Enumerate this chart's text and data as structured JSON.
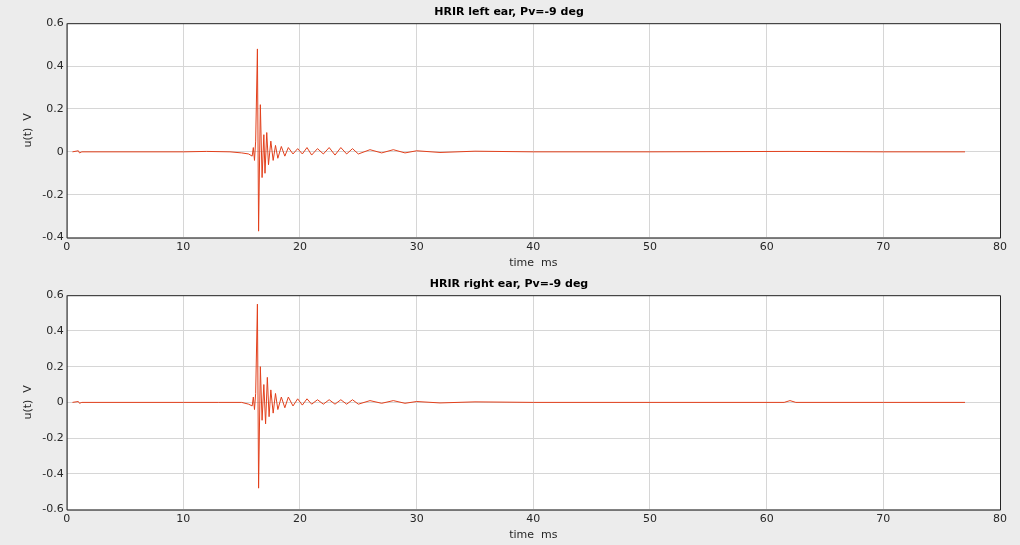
{
  "chart_data": [
    {
      "type": "line",
      "title": "HRIR left ear, Pv=-9 deg",
      "xlabel": "time  ms",
      "ylabel": "u(t)  V",
      "xlim": [
        0,
        80
      ],
      "xticks": [
        0,
        10,
        20,
        30,
        40,
        50,
        60,
        70,
        80
      ],
      "ylim": [
        -0.4,
        0.6
      ],
      "yticks": [
        -0.4,
        -0.2,
        0,
        0.2,
        0.4,
        0.6
      ],
      "grid": true,
      "legend": false,
      "x": [
        0.5,
        1.0,
        1.1,
        1.3,
        10,
        12,
        14,
        15,
        15.6,
        15.9,
        16.0,
        16.1,
        16.2,
        16.35,
        16.45,
        16.6,
        16.75,
        16.9,
        17.0,
        17.15,
        17.3,
        17.5,
        17.7,
        17.9,
        18.1,
        18.4,
        18.7,
        19.0,
        19.4,
        19.8,
        20.2,
        20.6,
        21.0,
        21.5,
        22.0,
        22.5,
        23.0,
        23.5,
        24.0,
        24.5,
        25.0,
        26,
        27,
        28,
        29,
        30,
        32,
        35,
        40,
        50,
        62,
        70,
        77
      ],
      "series": [
        {
          "color": "#e2401c",
          "values": [
            0,
            0.005,
            -0.005,
            0,
            0,
            0.002,
            0,
            -0.005,
            -0.01,
            -0.02,
            0.02,
            -0.04,
            0.05,
            0.48,
            -0.37,
            0.22,
            -0.12,
            0.08,
            -0.1,
            0.09,
            -0.06,
            0.05,
            -0.04,
            0.03,
            -0.03,
            0.025,
            -0.02,
            0.02,
            -0.01,
            0.015,
            -0.01,
            0.02,
            -0.015,
            0.015,
            -0.01,
            0.02,
            -0.015,
            0.02,
            -0.01,
            0.015,
            -0.01,
            0.01,
            -0.005,
            0.01,
            -0.005,
            0.005,
            -0.003,
            0.003,
            0,
            0,
            0.002,
            0,
            0
          ]
        }
      ]
    },
    {
      "type": "line",
      "title": "HRIR right ear, Pv=-9 deg",
      "xlabel": "time  ms",
      "ylabel": "u(t)  V",
      "xlim": [
        0,
        80
      ],
      "xticks": [
        0,
        10,
        20,
        30,
        40,
        50,
        60,
        70,
        80
      ],
      "ylim": [
        -0.6,
        0.6
      ],
      "yticks": [
        -0.6,
        -0.4,
        -0.2,
        0,
        0.2,
        0.4,
        0.6
      ],
      "grid": true,
      "legend": false,
      "x": [
        0.5,
        1.0,
        1.1,
        1.3,
        10,
        13,
        15,
        15.6,
        15.9,
        16.0,
        16.1,
        16.2,
        16.35,
        16.45,
        16.6,
        16.75,
        16.9,
        17.05,
        17.2,
        17.35,
        17.5,
        17.7,
        17.9,
        18.1,
        18.4,
        18.7,
        19.0,
        19.4,
        19.8,
        20.2,
        20.6,
        21.0,
        21.5,
        22.0,
        22.5,
        23.0,
        23.5,
        24.0,
        24.5,
        25.0,
        26,
        27,
        28,
        29,
        30,
        32,
        35,
        40,
        50,
        61.5,
        62,
        62.5,
        70,
        77
      ],
      "series": [
        {
          "color": "#e2401c",
          "values": [
            0,
            0.005,
            -0.005,
            0,
            0,
            0,
            0,
            -0.01,
            -0.02,
            0.03,
            -0.04,
            0.05,
            0.55,
            -0.48,
            0.2,
            -0.1,
            0.1,
            -0.12,
            0.14,
            -0.08,
            0.07,
            -0.06,
            0.05,
            -0.04,
            0.03,
            -0.03,
            0.03,
            -0.02,
            0.02,
            -0.015,
            0.02,
            -0.01,
            0.015,
            -0.01,
            0.015,
            -0.01,
            0.015,
            -0.01,
            0.015,
            -0.01,
            0.01,
            -0.005,
            0.01,
            -0.005,
            0.005,
            -0.003,
            0.003,
            0,
            0,
            0,
            0.01,
            0,
            0,
            0
          ]
        }
      ]
    }
  ]
}
